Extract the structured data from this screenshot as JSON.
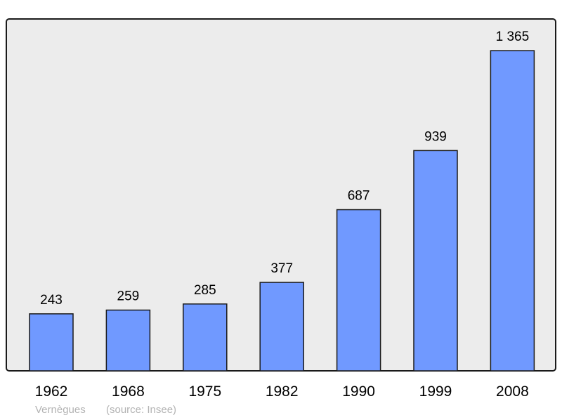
{
  "chart_data": {
    "type": "bar",
    "title": "",
    "xlabel": "",
    "ylabel": "",
    "categories": [
      "1962",
      "1968",
      "1975",
      "1982",
      "1990",
      "1999",
      "2008"
    ],
    "values": [
      243,
      259,
      285,
      377,
      687,
      939,
      1365
    ],
    "value_labels": [
      "243",
      "259",
      "285",
      "377",
      "687",
      "939",
      "1 365"
    ],
    "ylim": [
      0,
      1500
    ],
    "grid": false,
    "colors": {
      "bar": "#7099ff",
      "plot_background": "#ececec",
      "border": "#1a1a1a"
    }
  },
  "caption": {
    "place": "Vernègues",
    "source": "(source: Insee)"
  }
}
